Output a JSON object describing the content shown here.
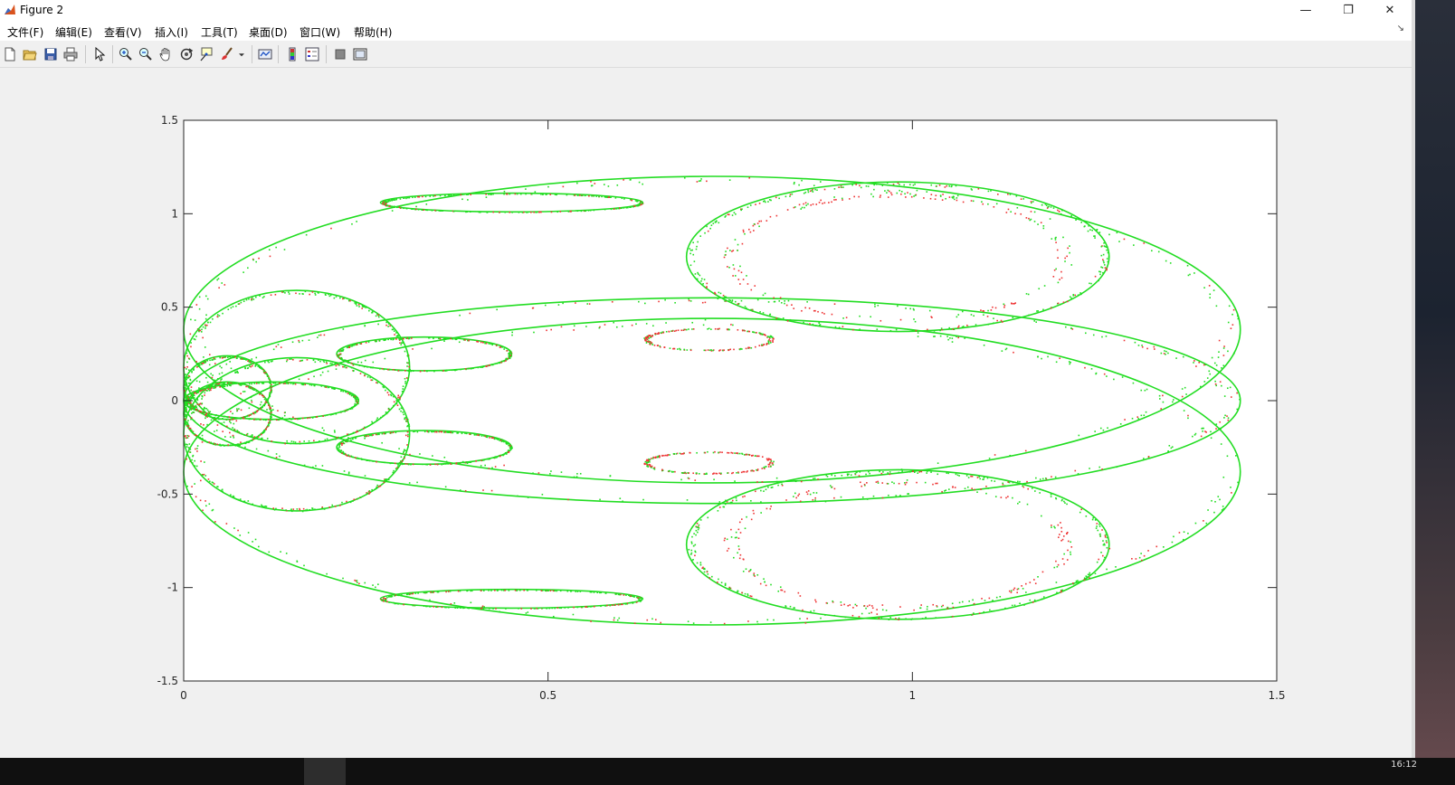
{
  "window": {
    "title": "Figure 2",
    "controls": {
      "minimize": "—",
      "restore": "❐",
      "close": "✕"
    }
  },
  "menubar": {
    "items": [
      "文件(F)",
      "编辑(E)",
      "查看(V)",
      "插入(I)",
      "工具(T)",
      "桌面(D)",
      "窗口(W)",
      "帮助(H)"
    ],
    "overflow": "↘"
  },
  "toolbar": {
    "buttons": [
      "new-figure-icon",
      "open-file-icon",
      "save-icon",
      "print-icon",
      "select-arrow-icon",
      "zoom-in-icon",
      "zoom-out-icon",
      "pan-hand-icon",
      "rotate-3d-icon",
      "data-cursor-icon",
      "brush-icon",
      "brush-dropdown-icon",
      "link-plot-icon",
      "colorbar-icon",
      "legend-icon",
      "hide-plot-tools-icon",
      "show-plot-tools-icon"
    ]
  },
  "chart_data": {
    "type": "scatter",
    "title": "",
    "xlabel": "",
    "ylabel": "",
    "xlim": [
      0,
      1.5
    ],
    "ylim": [
      -1.5,
      1.5
    ],
    "xticks": [
      "0",
      "0.5",
      "1",
      "1.5"
    ],
    "yticks": [
      "1.5",
      "1",
      "0.5",
      "0",
      "-0.5",
      "-1",
      "-1.5"
    ],
    "grid": false,
    "legend": "none",
    "series": [
      {
        "color": "#22dd22",
        "marker": "point",
        "structure": "dense"
      },
      {
        "color": "#ee3333",
        "marker": "point",
        "structure": "sparse"
      }
    ],
    "curves": [
      {
        "kind": "ellipse",
        "cx": 0.725,
        "cy": 0.38,
        "rx": 0.725,
        "ry": 0.82,
        "series": 0
      },
      {
        "kind": "ellipse",
        "cx": 0.725,
        "cy": -0.38,
        "rx": 0.725,
        "ry": 0.82,
        "series": 0
      },
      {
        "kind": "ellipse",
        "cx": 0.725,
        "cy": 0.0,
        "rx": 0.725,
        "ry": 0.55,
        "series": 0
      },
      {
        "kind": "ellipse",
        "cx": 0.155,
        "cy": 0.18,
        "rx": 0.155,
        "ry": 0.41,
        "series": 0
      },
      {
        "kind": "ellipse",
        "cx": 0.155,
        "cy": -0.18,
        "rx": 0.155,
        "ry": 0.41,
        "series": 0
      },
      {
        "kind": "ellipse",
        "cx": 0.06,
        "cy": 0.07,
        "rx": 0.06,
        "ry": 0.17,
        "series": 0
      },
      {
        "kind": "ellipse",
        "cx": 0.06,
        "cy": -0.07,
        "rx": 0.06,
        "ry": 0.17,
        "series": 0
      },
      {
        "kind": "ellipse",
        "cx": 0.12,
        "cy": 0.0,
        "rx": 0.12,
        "ry": 0.1,
        "series": 0
      },
      {
        "kind": "ellipse",
        "cx": 0.98,
        "cy": 0.77,
        "rx": 0.29,
        "ry": 0.4,
        "series": 0
      },
      {
        "kind": "ellipse",
        "cx": 0.98,
        "cy": -0.77,
        "rx": 0.29,
        "ry": 0.4,
        "series": 0
      },
      {
        "kind": "ellipse",
        "cx": 0.98,
        "cy": 0.77,
        "rx": 0.24,
        "ry": 0.35,
        "series": 1
      },
      {
        "kind": "ellipse",
        "cx": 0.98,
        "cy": -0.77,
        "rx": 0.24,
        "ry": 0.35,
        "series": 1
      },
      {
        "kind": "ellipse",
        "cx": 0.33,
        "cy": 0.25,
        "rx": 0.12,
        "ry": 0.09,
        "series": 0
      },
      {
        "kind": "ellipse",
        "cx": 0.33,
        "cy": -0.25,
        "rx": 0.12,
        "ry": 0.09,
        "series": 0
      },
      {
        "kind": "ellipse",
        "cx": 0.72,
        "cy": 0.33,
        "rx": 0.09,
        "ry": 0.06,
        "series": 1
      },
      {
        "kind": "ellipse",
        "cx": 0.72,
        "cy": -0.33,
        "rx": 0.09,
        "ry": 0.06,
        "series": 1
      },
      {
        "kind": "ellipse",
        "cx": 0.45,
        "cy": 1.06,
        "rx": 0.18,
        "ry": 0.05,
        "series": 0
      },
      {
        "kind": "ellipse",
        "cx": 0.45,
        "cy": -1.06,
        "rx": 0.18,
        "ry": 0.05,
        "series": 0
      }
    ]
  },
  "taskbar": {
    "clock": "16:12"
  }
}
